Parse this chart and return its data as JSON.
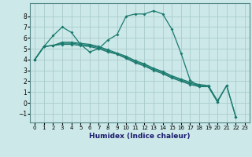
{
  "title": "",
  "xlabel": "Humidex (Indice chaleur)",
  "ylabel": "",
  "bg_color": "#cce8e8",
  "line_color": "#1a7a6e",
  "grid_color": "#aacccc",
  "xlim": [
    -0.5,
    23.5
  ],
  "ylim": [
    -1.8,
    9.2
  ],
  "xticks": [
    0,
    1,
    2,
    3,
    4,
    5,
    6,
    7,
    8,
    9,
    10,
    11,
    12,
    13,
    14,
    15,
    16,
    17,
    18,
    19,
    20,
    21,
    22,
    23
  ],
  "yticks": [
    -1,
    0,
    1,
    2,
    3,
    4,
    5,
    6,
    7,
    8
  ],
  "lines": [
    {
      "x": [
        0,
        1,
        2,
        3,
        4,
        5,
        6,
        7,
        8,
        9,
        10,
        11,
        12,
        13,
        14,
        15,
        16,
        17,
        18,
        19,
        20,
        21,
        22
      ],
      "y": [
        4.0,
        5.2,
        6.2,
        7.0,
        6.5,
        5.4,
        4.7,
        5.0,
        5.8,
        6.3,
        8.0,
        8.2,
        8.2,
        8.5,
        8.2,
        6.8,
        4.6,
        2.1,
        1.5,
        1.5,
        0.1,
        1.6,
        -1.3
      ]
    },
    {
      "x": [
        0,
        1,
        2,
        3,
        4,
        5,
        6,
        7,
        8,
        9,
        10,
        11,
        12,
        13,
        14,
        15,
        16,
        17,
        18,
        19
      ],
      "y": [
        4.0,
        5.2,
        5.3,
        5.4,
        5.4,
        5.3,
        5.2,
        5.0,
        4.7,
        4.5,
        4.1,
        3.7,
        3.4,
        3.0,
        2.7,
        2.3,
        2.0,
        1.7,
        1.5,
        1.5
      ]
    },
    {
      "x": [
        0,
        1,
        2,
        3,
        4,
        5,
        6,
        7,
        8,
        9,
        10,
        11,
        12,
        13,
        14,
        15,
        16,
        17,
        18,
        19,
        20
      ],
      "y": [
        4.0,
        5.2,
        5.3,
        5.5,
        5.5,
        5.4,
        5.3,
        5.1,
        4.8,
        4.5,
        4.2,
        3.8,
        3.5,
        3.1,
        2.8,
        2.4,
        2.1,
        1.8,
        1.6,
        1.5,
        0.1
      ]
    },
    {
      "x": [
        0,
        1,
        2,
        3,
        4,
        5,
        6,
        7,
        8,
        9,
        10,
        11,
        12,
        13,
        14,
        15,
        16,
        17,
        18,
        19,
        20,
        21,
        22
      ],
      "y": [
        4.0,
        5.2,
        5.3,
        5.6,
        5.6,
        5.5,
        5.4,
        5.2,
        4.9,
        4.6,
        4.3,
        3.9,
        3.6,
        3.2,
        2.9,
        2.5,
        2.2,
        1.9,
        1.7,
        1.6,
        0.2,
        1.6,
        -1.3
      ]
    }
  ]
}
